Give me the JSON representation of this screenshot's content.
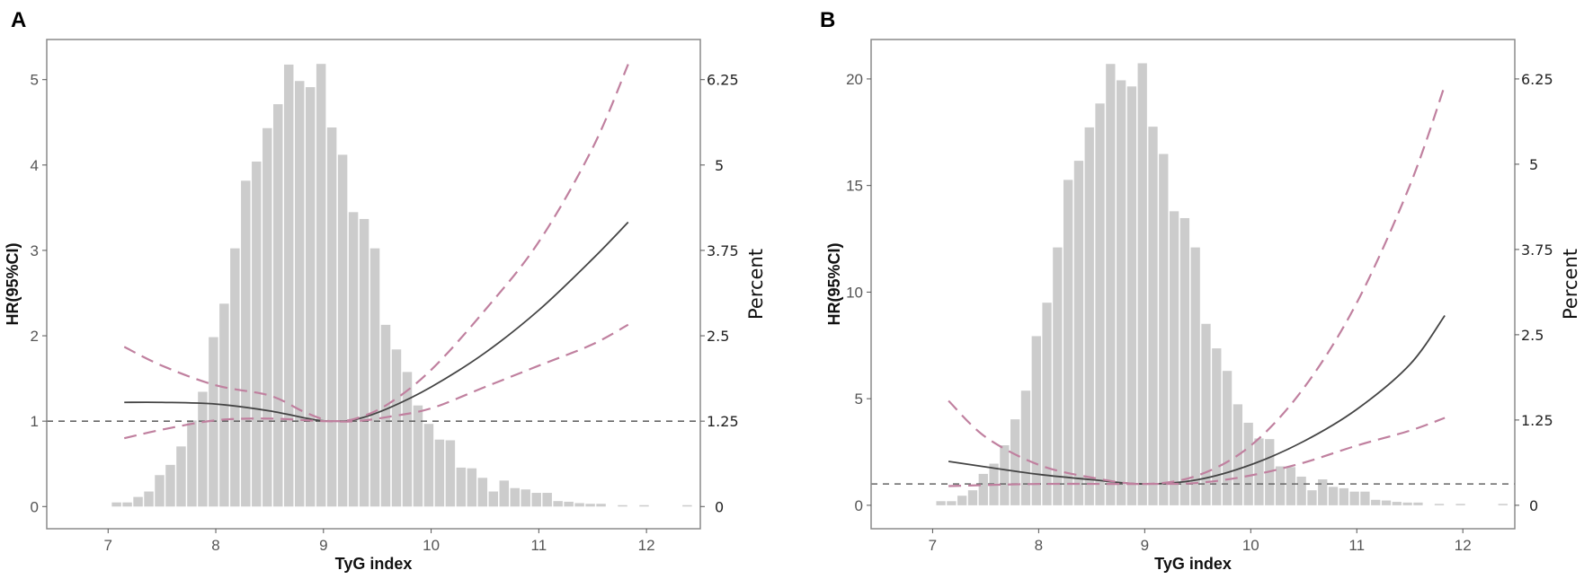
{
  "chart_data": [
    {
      "panel_label": "A",
      "type": "line+histogram",
      "xlabel": "TyG index",
      "ylabel": "HR(95%CI)",
      "y2label": "Percent",
      "xlim": [
        6.43,
        12.5
      ],
      "ylim": [
        -0.26,
        5.47
      ],
      "xticks": [
        7,
        8,
        9,
        10,
        11,
        12
      ],
      "yticks": [
        0,
        1,
        2,
        3,
        4,
        5
      ],
      "y2ticks": [
        "0",
        "1.25",
        "2.5",
        "3.75",
        "5",
        "6.25"
      ],
      "y2_per_y": 1.25,
      "reference_hr": 1,
      "grid": false,
      "colors": {
        "bars": "#cccccc",
        "hr": "#444444",
        "ci": "#c0809f",
        "reference": "#666666"
      },
      "histogram": {
        "bin_start": 7.03,
        "bin_width": 0.1,
        "percent": [
          0.06,
          0.06,
          0.14,
          0.22,
          0.46,
          0.61,
          0.88,
          1.26,
          1.68,
          2.48,
          2.97,
          3.78,
          4.77,
          5.05,
          5.54,
          5.89,
          6.47,
          6.23,
          6.14,
          6.48,
          5.55,
          5.15,
          4.31,
          4.21,
          3.78,
          2.66,
          2.3,
          1.97,
          1.48,
          1.21,
          0.98,
          0.97,
          0.57,
          0.56,
          0.42,
          0.22,
          0.38,
          0.27,
          0.25,
          0.2,
          0.2,
          0.08,
          0.07,
          0.05,
          0.04,
          0.04,
          0,
          0.02,
          0,
          0.02,
          0,
          0,
          0,
          0.02
        ]
      },
      "series": [
        {
          "role": "hr",
          "x": [
            7.15,
            7.5,
            8.0,
            8.5,
            8.9,
            9.1,
            9.3,
            9.6,
            10.0,
            10.5,
            11.0,
            11.5,
            11.83
          ],
          "y": [
            1.22,
            1.22,
            1.2,
            1.12,
            1.02,
            1.0,
            1.02,
            1.15,
            1.4,
            1.8,
            2.3,
            2.9,
            3.33
          ]
        },
        {
          "role": "ci_upper",
          "x": [
            7.15,
            7.5,
            8.0,
            8.5,
            8.8,
            9.0,
            9.1,
            9.3,
            9.6,
            10.0,
            10.5,
            11.0,
            11.5,
            11.83
          ],
          "y": [
            1.87,
            1.65,
            1.42,
            1.3,
            1.12,
            1.02,
            1.0,
            1.03,
            1.2,
            1.6,
            2.3,
            3.1,
            4.2,
            5.18
          ]
        },
        {
          "role": "ci_lower",
          "x": [
            7.15,
            7.5,
            8.0,
            8.5,
            9.0,
            9.3,
            9.6,
            10.0,
            10.5,
            11.0,
            11.5,
            11.83
          ],
          "y": [
            0.8,
            0.9,
            1.01,
            1.03,
            1.0,
            1.0,
            1.05,
            1.15,
            1.4,
            1.65,
            1.9,
            2.13
          ]
        }
      ]
    },
    {
      "panel_label": "B",
      "type": "line+histogram",
      "xlabel": "TyG index",
      "ylabel": "HR(95%CI)",
      "y2label": "Percent",
      "xlim": [
        6.42,
        12.49
      ],
      "ylim": [
        -1.1,
        21.85
      ],
      "xticks": [
        7,
        8,
        9,
        10,
        11,
        12
      ],
      "yticks": [
        0,
        5,
        10,
        15,
        20
      ],
      "y2ticks": [
        "0",
        "1.25",
        "2.5",
        "3.75",
        "5",
        "6.25"
      ],
      "y2_per_y": 0.3125,
      "reference_hr": 1,
      "grid": false,
      "colors": {
        "bars": "#cccccc",
        "hr": "#444444",
        "ci": "#c0809f",
        "reference": "#666666"
      },
      "histogram": {
        "bin_start": 7.03,
        "bin_width": 0.1,
        "percent": [
          0.06,
          0.06,
          0.14,
          0.22,
          0.46,
          0.61,
          0.88,
          1.26,
          1.68,
          2.48,
          2.97,
          3.78,
          4.77,
          5.05,
          5.54,
          5.89,
          6.47,
          6.23,
          6.14,
          6.48,
          5.55,
          5.15,
          4.31,
          4.21,
          3.78,
          2.66,
          2.3,
          1.97,
          1.48,
          1.21,
          0.98,
          0.97,
          0.57,
          0.56,
          0.42,
          0.22,
          0.38,
          0.27,
          0.25,
          0.2,
          0.2,
          0.08,
          0.07,
          0.05,
          0.04,
          0.04,
          0,
          0.02,
          0,
          0.02,
          0,
          0,
          0,
          0.02
        ]
      },
      "series": [
        {
          "role": "hr",
          "x": [
            7.15,
            7.5,
            8.0,
            8.5,
            9.0,
            9.5,
            10.0,
            10.5,
            11.0,
            11.5,
            11.83
          ],
          "y": [
            2.06,
            1.8,
            1.45,
            1.2,
            1.0,
            1.2,
            1.9,
            3.0,
            4.5,
            6.6,
            8.9
          ]
        },
        {
          "role": "ci_upper",
          "x": [
            7.15,
            7.5,
            8.0,
            8.5,
            9.0,
            9.5,
            10.0,
            10.5,
            11.0,
            11.5,
            11.83
          ],
          "y": [
            4.9,
            3.2,
            1.9,
            1.3,
            1.0,
            1.4,
            2.8,
            5.5,
            9.5,
            15.0,
            19.7
          ]
        },
        {
          "role": "ci_lower",
          "x": [
            7.15,
            8.0,
            9.0,
            9.5,
            10.0,
            10.5,
            11.0,
            11.5,
            11.83
          ],
          "y": [
            0.9,
            1.0,
            1.0,
            1.05,
            1.4,
            2.0,
            2.8,
            3.5,
            4.1
          ]
        }
      ]
    }
  ]
}
